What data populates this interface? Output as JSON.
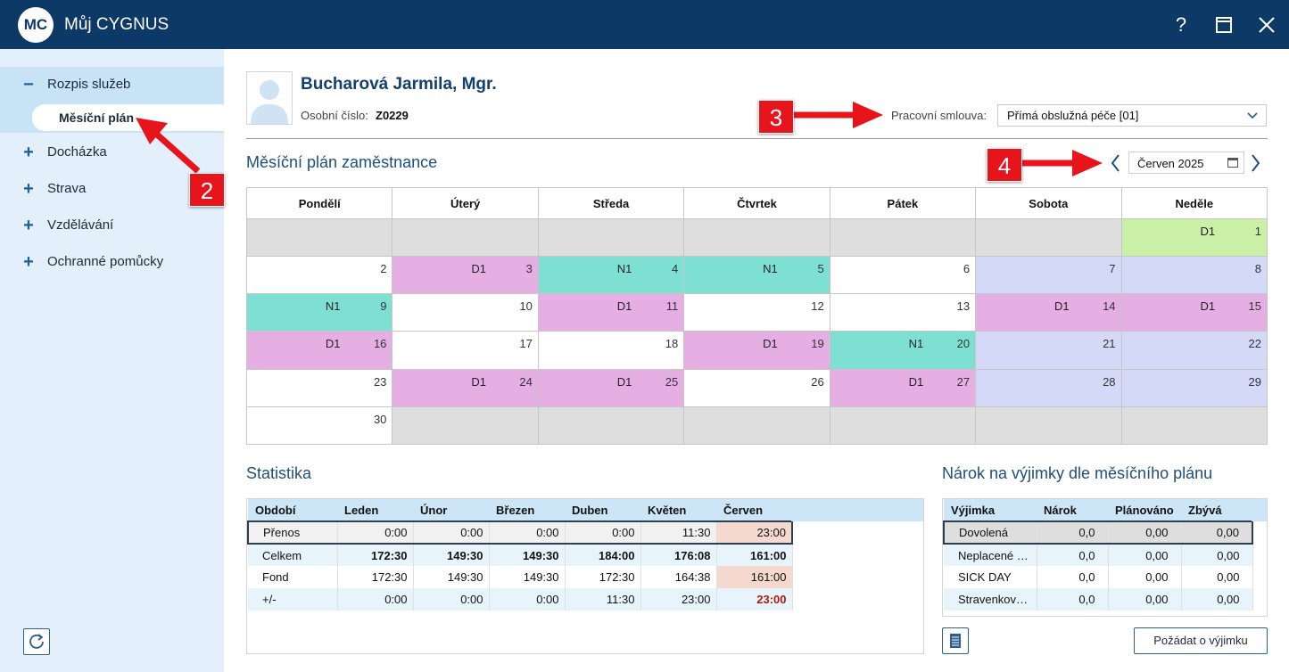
{
  "app": {
    "logo": "MC",
    "title": "Můj CYGNUS",
    "help_label": "?",
    "icons": {
      "help": "question-mark-icon",
      "maximize": "maximize-icon",
      "close": "close-icon"
    }
  },
  "sidebar": {
    "items": [
      {
        "symbol": "−",
        "label": "Rozpis služeb",
        "expanded": true
      },
      {
        "symbol": "+",
        "label": "Docházka"
      },
      {
        "symbol": "+",
        "label": "Strava"
      },
      {
        "symbol": "+",
        "label": "Vzdělávání"
      },
      {
        "symbol": "+",
        "label": "Ochranné pomůcky"
      }
    ],
    "sub_item": "Měsíční plán",
    "refresh_icon": "refresh-icon"
  },
  "employee": {
    "name": "Bucharová Jarmila, Mgr.",
    "os_label": "Osobní číslo:",
    "os_value": "Z0229",
    "contract_label": "Pracovní smlouva:",
    "contract_value": "Přímá obslužná péče [01]"
  },
  "plan": {
    "title": "Měsíční plán zaměstnance",
    "month": "Červen 2025",
    "weekdays": [
      "Pondělí",
      "Úterý",
      "Středa",
      "Čtvrtek",
      "Pátek",
      "Sobota",
      "Neděle"
    ],
    "colors": {
      "D1": "#e6afe4",
      "N1": "#7ee0d3",
      "weekend": "#d4d9f7",
      "sunday_shift": "#c9f0a6",
      "outside": "#dedede"
    },
    "weeks": [
      [
        {
          "t": "empty"
        },
        {
          "t": "empty"
        },
        {
          "t": "empty"
        },
        {
          "t": "empty"
        },
        {
          "t": "empty"
        },
        {
          "t": "empty"
        },
        {
          "t": "sun",
          "day": "1",
          "shift": "D1"
        }
      ],
      [
        {
          "t": "none",
          "day": "2"
        },
        {
          "t": "d1",
          "day": "3",
          "shift": "D1"
        },
        {
          "t": "n1",
          "day": "4",
          "shift": "N1"
        },
        {
          "t": "n1",
          "day": "5",
          "shift": "N1"
        },
        {
          "t": "none",
          "day": "6"
        },
        {
          "t": "we",
          "day": "7"
        },
        {
          "t": "we",
          "day": "8"
        }
      ],
      [
        {
          "t": "n1",
          "day": "9",
          "shift": "N1"
        },
        {
          "t": "none",
          "day": "10"
        },
        {
          "t": "d1",
          "day": "11",
          "shift": "D1"
        },
        {
          "t": "none",
          "day": "12"
        },
        {
          "t": "none",
          "day": "13"
        },
        {
          "t": "d1",
          "day": "14",
          "shift": "D1"
        },
        {
          "t": "d1",
          "day": "15",
          "shift": "D1"
        }
      ],
      [
        {
          "t": "d1",
          "day": "16",
          "shift": "D1"
        },
        {
          "t": "none",
          "day": "17"
        },
        {
          "t": "none",
          "day": "18"
        },
        {
          "t": "d1",
          "day": "19",
          "shift": "D1"
        },
        {
          "t": "n1",
          "day": "20",
          "shift": "N1"
        },
        {
          "t": "we",
          "day": "21"
        },
        {
          "t": "we",
          "day": "22"
        }
      ],
      [
        {
          "t": "none",
          "day": "23"
        },
        {
          "t": "d1",
          "day": "24",
          "shift": "D1"
        },
        {
          "t": "d1",
          "day": "25",
          "shift": "D1"
        },
        {
          "t": "none",
          "day": "26"
        },
        {
          "t": "d1",
          "day": "27",
          "shift": "D1"
        },
        {
          "t": "we",
          "day": "28"
        },
        {
          "t": "we",
          "day": "29"
        }
      ],
      [
        {
          "t": "none",
          "day": "30"
        },
        {
          "t": "empty"
        },
        {
          "t": "empty"
        },
        {
          "t": "empty"
        },
        {
          "t": "empty"
        },
        {
          "t": "empty"
        },
        {
          "t": "empty"
        }
      ]
    ]
  },
  "stats": {
    "title": "Statistika",
    "headers": [
      "Období",
      "Leden",
      "Únor",
      "Březen",
      "Duben",
      "Květen",
      "Červen"
    ],
    "rows": [
      {
        "label": "Přenos",
        "values": [
          "0:00",
          "0:00",
          "0:00",
          "0:00",
          "11:30",
          "23:00"
        ]
      },
      {
        "label": "Celkem",
        "values": [
          "172:30",
          "149:30",
          "149:30",
          "184:00",
          "176:08",
          "161:00"
        ]
      },
      {
        "label": "Fond",
        "values": [
          "172:30",
          "149:30",
          "149:30",
          "172:30",
          "164:38",
          "161:00"
        ]
      },
      {
        "label": "+/-",
        "values": [
          "0:00",
          "0:00",
          "0:00",
          "11:30",
          "23:00",
          "23:00"
        ]
      }
    ]
  },
  "narok": {
    "title": "Nárok na výjimky dle měsíčního plánu",
    "headers": [
      "Výjimka",
      "Nárok",
      "Plánováno",
      "Zbývá"
    ],
    "rows": [
      {
        "label": "Dovolená",
        "values": [
          "0,0",
          "0,00",
          "0,00"
        ]
      },
      {
        "label": "Neplacené volno",
        "values": [
          "0,0",
          "0,00",
          "0,00"
        ]
      },
      {
        "label": "SICK DAY",
        "values": [
          "0,0",
          "0,00",
          "0,00"
        ]
      },
      {
        "label": "Stravenkový paušál",
        "values": [
          "0,0",
          "0,00",
          "0,00"
        ]
      }
    ],
    "request_button": "Požádat o výjimku",
    "doc_icon": "document-list-icon"
  },
  "annotations": {
    "badges": [
      "2",
      "3",
      "4"
    ],
    "arrow_color": "#e8141c"
  }
}
